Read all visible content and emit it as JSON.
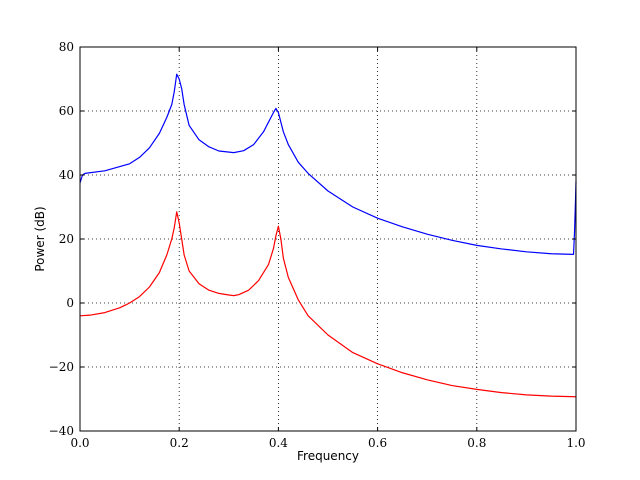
{
  "chart_data": {
    "type": "line",
    "title": "",
    "xlabel": "Frequency",
    "ylabel": "Power (dB)",
    "xlim": [
      0.0,
      1.0
    ],
    "ylim": [
      -40,
      80
    ],
    "grid": true,
    "xticks": [
      0.0,
      0.2,
      0.4,
      0.6,
      0.8,
      1.0
    ],
    "xtick_labels": [
      "0.0",
      "0.2",
      "0.4",
      "0.6",
      "0.8",
      "1.0"
    ],
    "yticks": [
      -40,
      -20,
      0,
      20,
      40,
      60,
      80
    ],
    "ytick_labels": [
      "−40",
      "−20",
      "0",
      "20",
      "40",
      "60",
      "80"
    ],
    "series": [
      {
        "color": "#0000ff",
        "x": [
          0.0,
          0.005,
          0.01,
          0.05,
          0.1,
          0.12,
          0.14,
          0.16,
          0.175,
          0.185,
          0.19,
          0.195,
          0.2,
          0.205,
          0.21,
          0.22,
          0.24,
          0.26,
          0.28,
          0.31,
          0.33,
          0.35,
          0.37,
          0.38,
          0.39,
          0.395,
          0.4,
          0.405,
          0.41,
          0.42,
          0.44,
          0.46,
          0.5,
          0.55,
          0.6,
          0.65,
          0.7,
          0.75,
          0.8,
          0.85,
          0.9,
          0.95,
          0.995,
          0.997,
          0.999,
          1.0
        ],
        "y": [
          37.5,
          40.0,
          40.5,
          41.3,
          43.5,
          45.5,
          48.5,
          53.0,
          58.0,
          62.0,
          66.0,
          71.5,
          70.0,
          67.0,
          62.0,
          55.5,
          51.0,
          48.8,
          47.5,
          47.0,
          47.6,
          49.5,
          53.5,
          56.5,
          59.5,
          60.8,
          59.5,
          56.5,
          53.5,
          49.5,
          44.0,
          40.5,
          35.0,
          30.0,
          26.5,
          23.8,
          21.5,
          19.6,
          18.0,
          16.9,
          16.0,
          15.4,
          15.2,
          22.0,
          32.0,
          38.0
        ]
      },
      {
        "color": "#ff0000",
        "x": [
          0.0,
          0.02,
          0.05,
          0.08,
          0.1,
          0.12,
          0.14,
          0.16,
          0.175,
          0.185,
          0.19,
          0.195,
          0.2,
          0.205,
          0.21,
          0.22,
          0.24,
          0.26,
          0.28,
          0.3,
          0.31,
          0.32,
          0.34,
          0.36,
          0.38,
          0.39,
          0.395,
          0.4,
          0.405,
          0.41,
          0.42,
          0.44,
          0.46,
          0.5,
          0.55,
          0.6,
          0.65,
          0.7,
          0.75,
          0.8,
          0.85,
          0.9,
          0.95,
          1.0
        ],
        "y": [
          -4.0,
          -3.8,
          -3.0,
          -1.5,
          0.0,
          2.0,
          5.0,
          9.5,
          15.0,
          20.0,
          23.5,
          28.5,
          25.0,
          20.0,
          15.0,
          10.0,
          6.0,
          4.0,
          3.0,
          2.5,
          2.3,
          2.6,
          4.0,
          7.0,
          12.0,
          17.0,
          21.0,
          24.0,
          20.0,
          14.0,
          8.0,
          1.0,
          -4.0,
          -10.0,
          -15.5,
          -19.0,
          -21.8,
          -24.0,
          -25.8,
          -27.0,
          -28.0,
          -28.7,
          -29.1,
          -29.3
        ]
      }
    ]
  }
}
